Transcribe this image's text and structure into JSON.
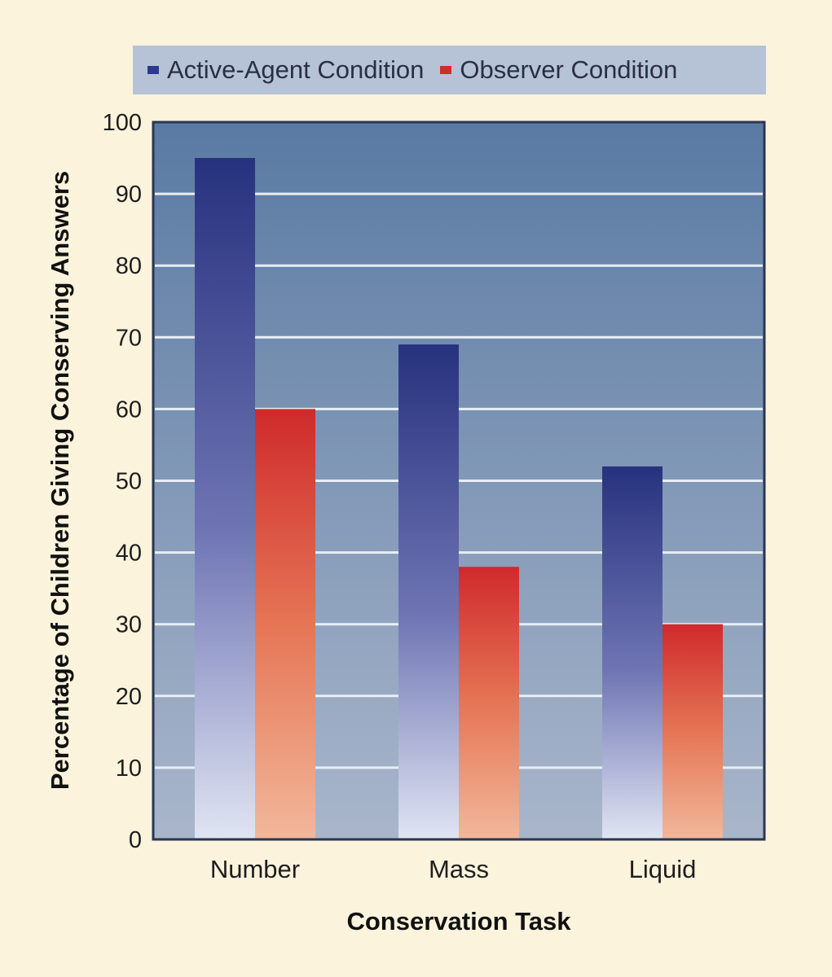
{
  "chart_data": {
    "type": "bar",
    "categories": [
      "Number",
      "Mass",
      "Liquid"
    ],
    "series": [
      {
        "name": "Active-Agent Condition",
        "values": [
          95,
          69,
          52
        ],
        "color": "#2b3a8f"
      },
      {
        "name": "Observer Condition",
        "values": [
          60,
          38,
          30
        ],
        "color": "#d42a2a"
      }
    ],
    "xlabel": "Conservation Task",
    "ylabel": "Percentage of Children Giving Conserving Answers",
    "ylim": [
      0,
      100
    ],
    "yticks": [
      "0",
      "10",
      "20",
      "30",
      "40",
      "50",
      "60",
      "70",
      "80",
      "90",
      "100"
    ],
    "grid": true,
    "legend_position": "top"
  }
}
